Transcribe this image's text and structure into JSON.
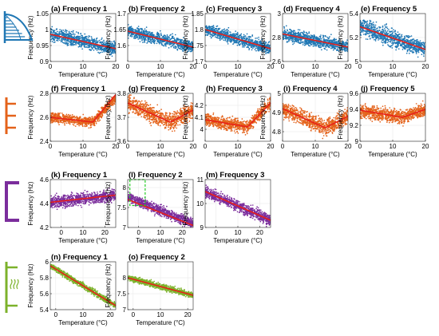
{
  "figure": {
    "xlabel": "Temperature (°C)",
    "ylabel": "Frequency (Hz)",
    "rows": [
      {
        "id": "arch",
        "color": "#1f77b4",
        "icon": "arch-bridge-icon"
      },
      {
        "id": "truss",
        "color": "#e4621a",
        "icon": "truss-bridge-icon"
      },
      {
        "id": "frame",
        "color": "#7b2d9c",
        "icon": "portal-frame-icon"
      },
      {
        "id": "cable",
        "color": "#7cb22b",
        "icon": "cable-stayed-icon"
      }
    ],
    "fit_line_color": "#e8201a",
    "highlight_color": "#22cc22"
  },
  "chart_data": [
    {
      "type": "scatter",
      "row": 0,
      "col": 0,
      "title": "(a) Frequency 1",
      "xlim": [
        0,
        20
      ],
      "ylim": [
        0.9,
        1.05
      ],
      "xticks": [
        "0",
        "10",
        "20"
      ],
      "yticks": [
        "0.9",
        "0.95",
        "1",
        "1.05"
      ],
      "fit": [
        [
          0,
          0.985
        ],
        [
          20,
          0.94
        ]
      ],
      "cloud_center": [
        [
          0,
          0.985
        ],
        [
          20,
          0.94
        ]
      ],
      "cloud_spread": 0.02
    },
    {
      "type": "scatter",
      "row": 0,
      "col": 1,
      "title": "(b) Frequency 2",
      "xlim": [
        0,
        20
      ],
      "ylim": [
        1.55,
        1.7
      ],
      "xticks": [
        "0",
        "10",
        "20"
      ],
      "yticks": [
        "1.6",
        "1.65",
        "1.7"
      ],
      "fit": [
        [
          0,
          1.645
        ],
        [
          20,
          1.595
        ]
      ],
      "cloud_center": [
        [
          0,
          1.645
        ],
        [
          20,
          1.595
        ]
      ],
      "cloud_spread": 0.018
    },
    {
      "type": "scatter",
      "row": 0,
      "col": 2,
      "title": "(c) Frequency 3",
      "xlim": [
        0,
        20
      ],
      "ylim": [
        1.7,
        1.85
      ],
      "xticks": [
        "0",
        "10",
        "20"
      ],
      "yticks": [
        "1.7",
        "1.75",
        "1.8",
        "1.85"
      ],
      "fit": [
        [
          0,
          1.8
        ],
        [
          20,
          1.74
        ]
      ],
      "cloud_center": [
        [
          0,
          1.8
        ],
        [
          20,
          1.74
        ]
      ],
      "cloud_spread": 0.018
    },
    {
      "type": "scatter",
      "row": 0,
      "col": 3,
      "title": "(d) Frequency 4",
      "xlim": [
        0,
        20
      ],
      "ylim": [
        2.6,
        3.0
      ],
      "xticks": [
        "0",
        "10",
        "20"
      ],
      "yticks": [
        "2.6",
        "2.8",
        "3"
      ],
      "fit": [
        [
          0,
          2.83
        ],
        [
          20,
          2.72
        ]
      ],
      "cloud_center": [
        [
          0,
          2.83
        ],
        [
          20,
          2.72
        ]
      ],
      "cloud_spread": 0.05
    },
    {
      "type": "scatter",
      "row": 0,
      "col": 4,
      "title": "(e) Frequency 5",
      "xlim": [
        0,
        20
      ],
      "ylim": [
        5.0,
        5.4
      ],
      "xticks": [
        "0",
        "10",
        "20"
      ],
      "yticks": [
        "5",
        "5.2",
        "5.4"
      ],
      "fit": [
        [
          0,
          5.29
        ],
        [
          20,
          5.1
        ]
      ],
      "cloud_center": [
        [
          0,
          5.29
        ],
        [
          20,
          5.1
        ]
      ],
      "cloud_spread": 0.07
    },
    {
      "type": "scatter",
      "row": 1,
      "col": 0,
      "title": "(f) Frequency 1",
      "xlim": [
        0,
        20
      ],
      "ylim": [
        2.4,
        2.8
      ],
      "xticks": [
        "0",
        "10",
        "20"
      ],
      "yticks": [
        "2.4",
        "2.6",
        "2.8"
      ],
      "fit": [
        [
          0,
          2.6
        ],
        [
          13,
          2.56
        ],
        [
          13,
          2.56
        ],
        [
          20,
          2.79
        ]
      ],
      "cloud_center": [
        [
          0,
          2.6
        ],
        [
          13,
          2.56
        ],
        [
          20,
          2.76
        ]
      ],
      "cloud_spread": 0.04
    },
    {
      "type": "scatter",
      "row": 1,
      "col": 1,
      "title": "(g) Frequency 2",
      "xlim": [
        0,
        20
      ],
      "ylim": [
        3.6,
        3.8
      ],
      "xticks": [
        "0",
        "10",
        "20"
      ],
      "yticks": [
        "3.6",
        "3.7",
        "3.8"
      ],
      "fit": [
        [
          0,
          3.76
        ],
        [
          13,
          3.68
        ],
        [
          13,
          3.68
        ],
        [
          20,
          3.73
        ]
      ],
      "cloud_center": [
        [
          0,
          3.76
        ],
        [
          13,
          3.68
        ],
        [
          20,
          3.73
        ]
      ],
      "cloud_spread": 0.035
    },
    {
      "type": "scatter",
      "row": 1,
      "col": 2,
      "title": "(h) Frequency 3",
      "xlim": [
        0,
        20
      ],
      "ylim": [
        3.9,
        4.3
      ],
      "xticks": [
        "0",
        "10",
        "20"
      ],
      "yticks": [
        "4",
        "4.1",
        "4.2"
      ],
      "fit": [
        [
          0,
          4.08
        ],
        [
          13,
          4.02
        ],
        [
          13,
          4.02
        ],
        [
          20,
          4.22
        ]
      ],
      "cloud_center": [
        [
          0,
          4.08
        ],
        [
          13,
          4.02
        ],
        [
          20,
          4.22
        ]
      ],
      "cloud_spread": 0.05
    },
    {
      "type": "scatter",
      "row": 1,
      "col": 3,
      "title": "(i) Frequency 4",
      "xlim": [
        0,
        20
      ],
      "ylim": [
        4.75,
        5.0
      ],
      "xticks": [
        "0",
        "10",
        "20"
      ],
      "yticks": [
        "4.8",
        "4.9",
        "5"
      ],
      "fit": [
        [
          0,
          4.92
        ],
        [
          13,
          4.82
        ],
        [
          13,
          4.82
        ],
        [
          20,
          4.88
        ]
      ],
      "cloud_center": [
        [
          0,
          4.92
        ],
        [
          13,
          4.82
        ],
        [
          20,
          4.88
        ]
      ],
      "cloud_spread": 0.04
    },
    {
      "type": "scatter",
      "row": 1,
      "col": 4,
      "title": "(j) Frequency 5",
      "xlim": [
        0,
        20
      ],
      "ylim": [
        9.0,
        9.6
      ],
      "xticks": [
        "0",
        "10",
        "20"
      ],
      "yticks": [
        "9",
        "9.2",
        "9.4",
        "9.6"
      ],
      "fit": [
        [
          0,
          9.39
        ],
        [
          13,
          9.3
        ],
        [
          13,
          9.3
        ],
        [
          20,
          9.4
        ]
      ],
      "cloud_center": [
        [
          0,
          9.38
        ],
        [
          13,
          9.3
        ],
        [
          20,
          9.4
        ]
      ],
      "cloud_spread": 0.08
    },
    {
      "type": "scatter",
      "row": 2,
      "col": 0,
      "title": "(k) Frequency 1",
      "xlim": [
        -5,
        25
      ],
      "ylim": [
        4.2,
        4.6
      ],
      "xticks": [
        "0",
        "10",
        "20"
      ],
      "yticks": [
        "4.2",
        "4.4",
        "4.6"
      ],
      "fit": [
        [
          -5,
          4.41
        ],
        [
          25,
          4.47
        ]
      ],
      "cloud_center": [
        [
          -5,
          4.41
        ],
        [
          25,
          4.47
        ]
      ],
      "cloud_spread": 0.05
    },
    {
      "type": "scatter",
      "row": 2,
      "col": 1,
      "title": "(l) Frequency 2",
      "xlim": [
        -5,
        25
      ],
      "ylim": [
        7.0,
        8.2
      ],
      "xticks": [
        "0",
        "10",
        "20"
      ],
      "yticks": [
        "7",
        "7.5",
        "8"
      ],
      "fit": [
        [
          -5,
          7.7
        ],
        [
          25,
          7.05
        ]
      ],
      "cloud_center": [
        [
          -5,
          7.75
        ],
        [
          25,
          7.1
        ]
      ],
      "cloud_spread": 0.12,
      "highlight_box": {
        "x": [
          -4,
          3
        ],
        "y": [
          7.55,
          8.2
        ]
      }
    },
    {
      "type": "scatter",
      "row": 2,
      "col": 2,
      "title": "(m) Frequency 3",
      "xlim": [
        -5,
        25
      ],
      "ylim": [
        9.0,
        11.0
      ],
      "xticks": [
        "0",
        "10",
        "20"
      ],
      "yticks": [
        "9",
        "10",
        "11"
      ],
      "fit": [
        [
          -5,
          10.5
        ],
        [
          25,
          9.3
        ]
      ],
      "cloud_center": [
        [
          -5,
          10.5
        ],
        [
          25,
          9.3
        ]
      ],
      "cloud_spread": 0.22
    },
    {
      "type": "scatter",
      "row": 3,
      "col": 0,
      "title": "(n) Frequency 1",
      "xlim": [
        -2,
        22
      ],
      "ylim": [
        5.4,
        6.0
      ],
      "xticks": [
        "0",
        "10",
        "20"
      ],
      "yticks": [
        "5.4",
        "5.6",
        "5.8",
        "6"
      ],
      "fit": [
        [
          -2,
          5.95
        ],
        [
          22,
          5.45
        ]
      ],
      "cloud_center": [
        [
          -2,
          5.95
        ],
        [
          22,
          5.45
        ]
      ],
      "cloud_spread": 0.035
    },
    {
      "type": "scatter",
      "row": 3,
      "col": 1,
      "title": "(o) Frequency 2",
      "xlim": [
        -2,
        22
      ],
      "ylim": [
        7.0,
        8.5
      ],
      "xticks": [
        "0",
        "10",
        "20"
      ],
      "yticks": [
        "7",
        "7.5",
        "8"
      ],
      "fit": [
        [
          -2,
          8.0
        ],
        [
          22,
          7.45
        ]
      ],
      "cloud_center": [
        [
          -2,
          8.0
        ],
        [
          22,
          7.45
        ]
      ],
      "cloud_spread": 0.09
    }
  ]
}
